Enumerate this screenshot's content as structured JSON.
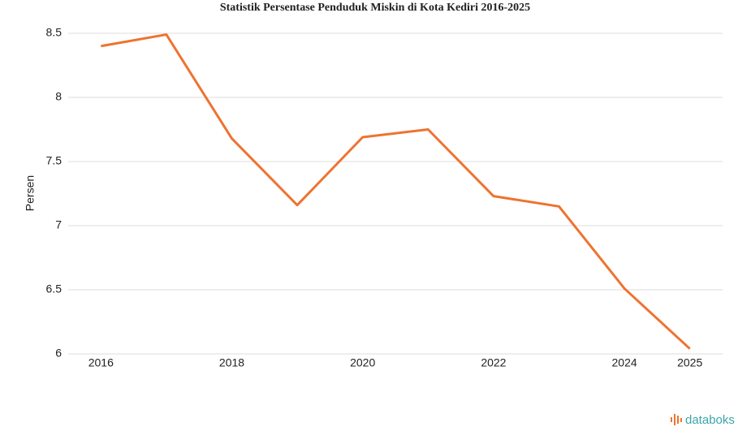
{
  "chart_data": {
    "type": "line",
    "title": "Statistik Persentase Penduduk Miskin di Kota Kediri 2016-2025",
    "y_label": "Persen",
    "x": [
      2016,
      2017,
      2018,
      2019,
      2020,
      2021,
      2022,
      2023,
      2024,
      2025
    ],
    "series": [
      {
        "name": "Persen",
        "color": "#ee7330",
        "values": [
          8.4,
          8.49,
          7.68,
          7.16,
          7.69,
          7.75,
          7.23,
          7.15,
          6.51,
          6.04
        ]
      }
    ],
    "xlim": [
      2015.5,
      2025.5
    ],
    "xticks": [
      2016,
      2018,
      2020,
      2022,
      2024,
      2025
    ],
    "ylim": [
      6,
      8.5
    ],
    "yticks": [
      6,
      6.5,
      7,
      7.5,
      8,
      8.5
    ],
    "grid": true
  },
  "brand": "databoks"
}
